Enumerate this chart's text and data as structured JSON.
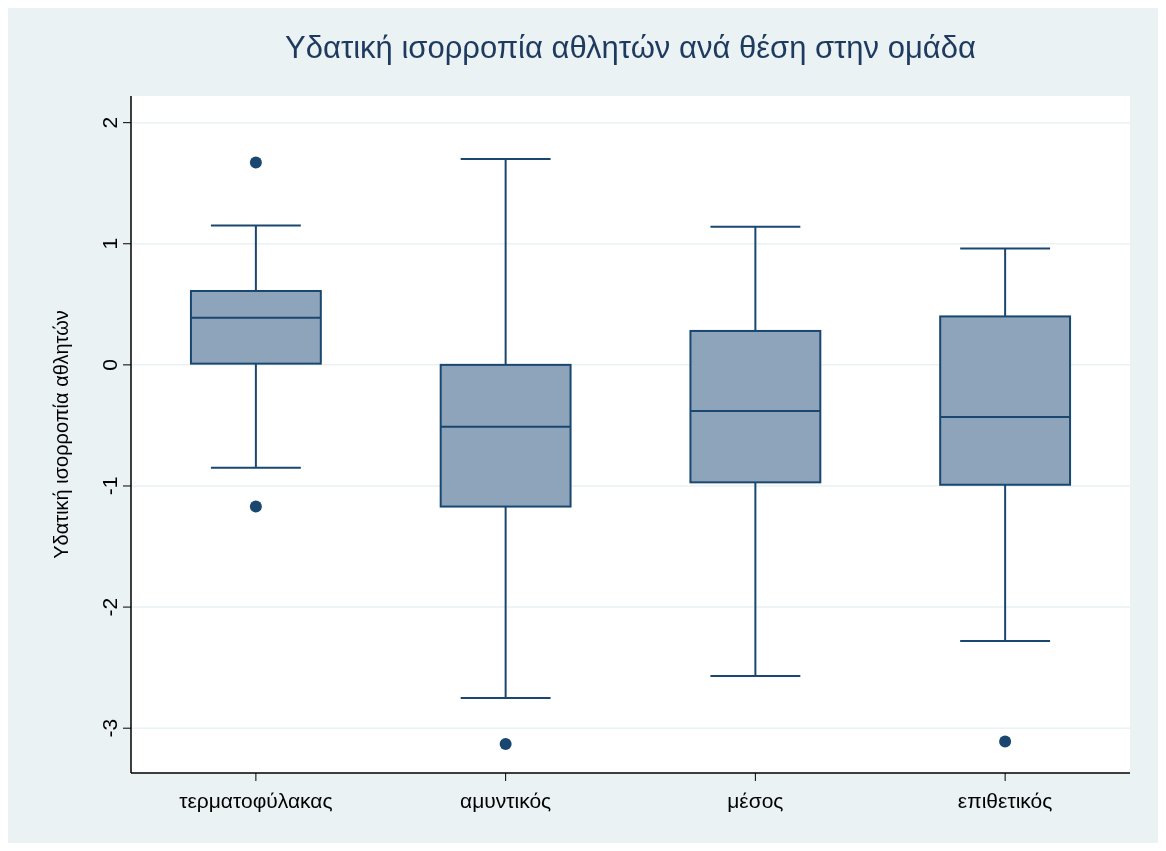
{
  "chart_data": {
    "type": "box",
    "title": "Υδατική ισορροπία αθλητών ανά θέση στην ομάδα",
    "ylabel": "Υδατική ισορροπία αθλητών",
    "categories": [
      "τερματοφύλακας",
      "αμυντικός",
      "μέσος",
      "επιθετικός"
    ],
    "series": [
      {
        "color": "#8ea4bb",
        "boxes": [
          {
            "low": -0.85,
            "q1": 0.01,
            "median": 0.39,
            "q3": 0.61,
            "high": 1.15,
            "outliers": [
              1.67,
              -1.17
            ]
          },
          {
            "low": -2.75,
            "q1": -1.17,
            "median": -0.51,
            "q3": 0.0,
            "high": 1.7,
            "outliers": [
              -3.13
            ]
          },
          {
            "low": -2.57,
            "q1": -0.97,
            "median": -0.38,
            "q3": 0.28,
            "high": 1.14
          },
          {
            "low": -2.28,
            "q1": -0.99,
            "median": -0.43,
            "q3": 0.4,
            "high": 0.96,
            "outliers": [
              -3.11
            ]
          }
        ]
      }
    ],
    "ylim": [
      -3.37,
      2.22
    ],
    "yticks": [
      -3,
      -2,
      -1,
      0,
      1,
      2
    ],
    "grid": "y"
  }
}
